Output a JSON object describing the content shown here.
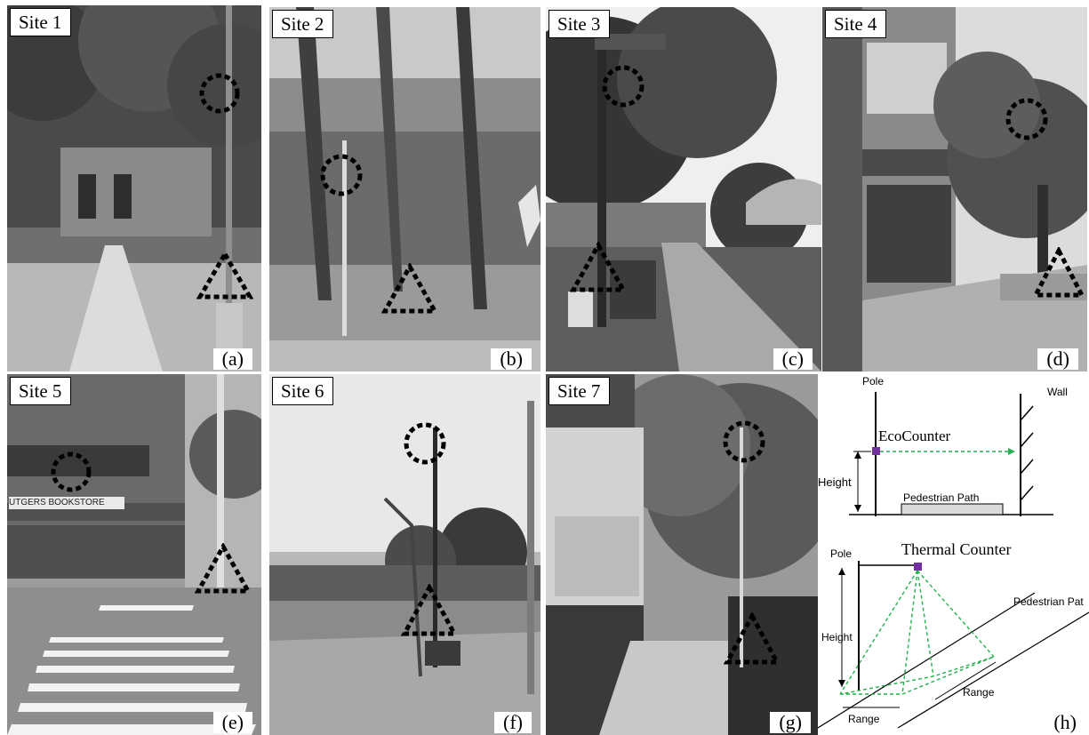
{
  "panels": [
    {
      "site_label": "Site 1",
      "letter": "(a)"
    },
    {
      "site_label": "Site 2",
      "letter": "(b)"
    },
    {
      "site_label": "Site 3",
      "letter": "(c)"
    },
    {
      "site_label": "Site 4",
      "letter": "(d)"
    },
    {
      "site_label": "Site 5",
      "letter": "(e)"
    },
    {
      "site_label": "Site 6",
      "letter": "(f)"
    },
    {
      "site_label": "Site 7",
      "letter": "(g)"
    },
    {
      "letter": "(h)"
    }
  ],
  "sign_text": {
    "site5_store": "UTGERS BOOKSTORE"
  },
  "diagram": {
    "eco": {
      "pole": "Pole",
      "wall": "Wall",
      "device": "EcoCounter",
      "height": "Height",
      "path": "Pedestrian Path"
    },
    "thermal": {
      "pole": "Pole",
      "device": "Thermal Counter",
      "height": "Height",
      "path": "Pedestrian Pat",
      "range_right": "Range",
      "range_bottom": "Range"
    }
  },
  "colors": {
    "marker": "#000000",
    "device": "#7030a0",
    "beam": "#22b14c"
  }
}
